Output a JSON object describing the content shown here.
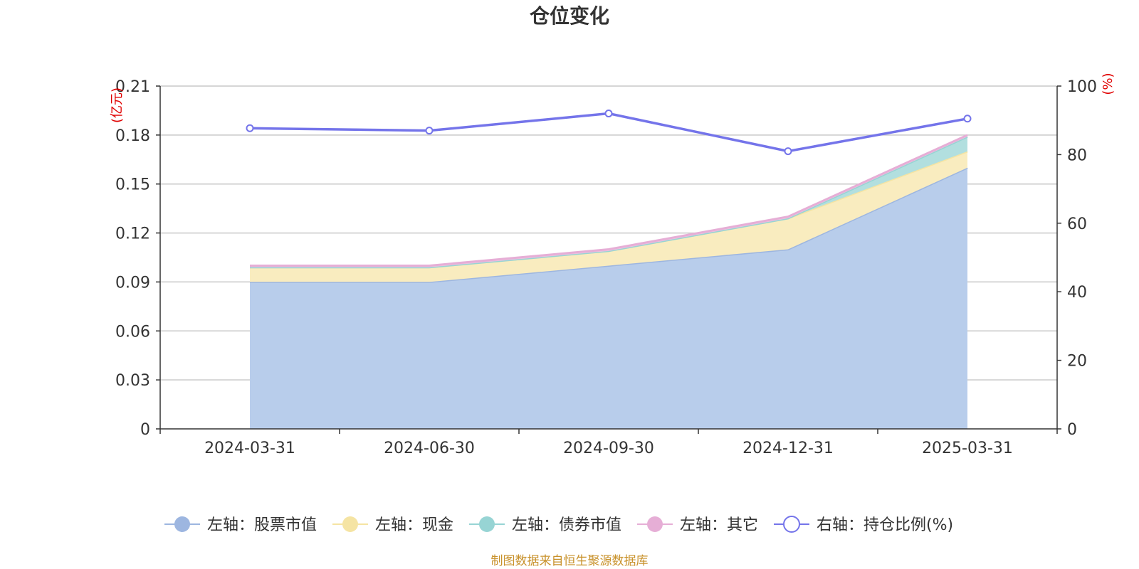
{
  "title": "仓位变化",
  "source_note": "制图数据来自恒生聚源数据库",
  "chart_data": {
    "type": "area",
    "categories": [
      "2024-03-31",
      "2024-06-30",
      "2024-09-30",
      "2024-12-31",
      "2025-03-31"
    ],
    "left_axis": {
      "unit": "(亿元)",
      "ylim": [
        0,
        0.21
      ],
      "ticks": [
        "0",
        "0.03",
        "0.06",
        "0.09",
        "0.12",
        "0.15",
        "0.18",
        "0.21"
      ]
    },
    "right_axis": {
      "unit": "(%)",
      "ylim": [
        0,
        100
      ],
      "ticks": [
        "0",
        "20",
        "40",
        "60",
        "80",
        "100"
      ]
    },
    "grid": true,
    "legend_position": "bottom",
    "stacked_series": [
      {
        "name": "左轴：股票市值",
        "values": [
          0.09,
          0.09,
          0.1,
          0.11,
          0.16
        ],
        "color": "#9db6e0",
        "fill": "#b8cdeb"
      },
      {
        "name": "左轴：现金",
        "values": [
          0.009,
          0.009,
          0.009,
          0.019,
          0.01
        ],
        "color": "#f5e4a3",
        "fill": "#f9ecbf"
      },
      {
        "name": "左轴：债券市值",
        "values": [
          0.0,
          0.0,
          0.0,
          0.0,
          0.009
        ],
        "color": "#97d4d4",
        "fill": "#b2dfdf"
      },
      {
        "name": "左轴：其它",
        "values": [
          0.001,
          0.001,
          0.001,
          0.001,
          0.001
        ],
        "color": "#e6aed6",
        "fill": "#eec4e1"
      }
    ],
    "line_series": {
      "name": "右轴：持仓比例(%)",
      "values": [
        87.7,
        87.0,
        92.0,
        81.0,
        90.5
      ],
      "color": "#7474ea"
    }
  }
}
